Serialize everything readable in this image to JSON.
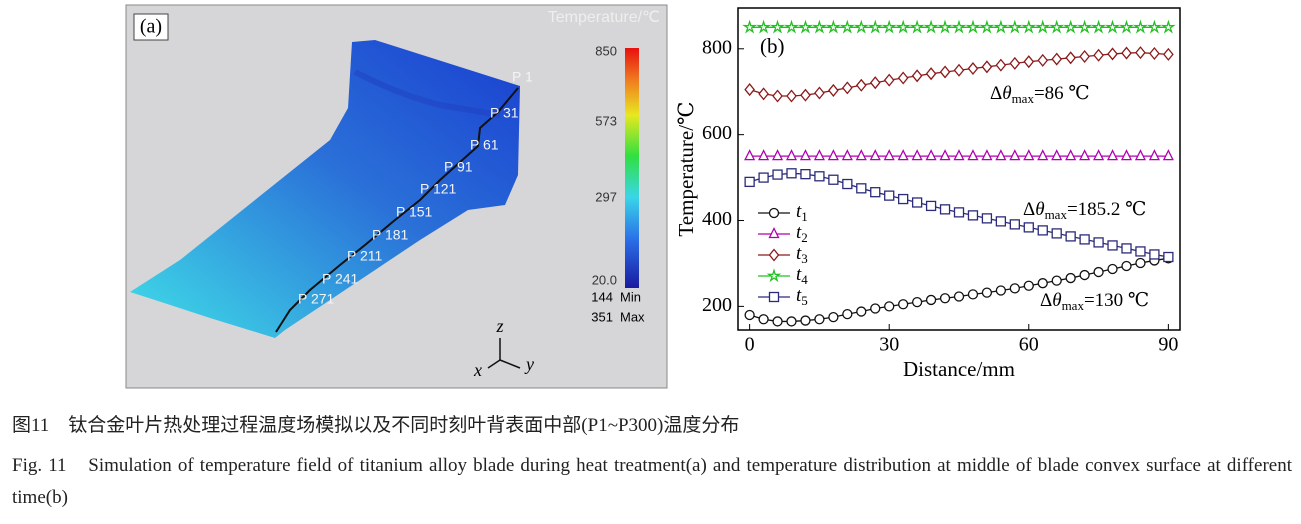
{
  "panel_a": {
    "label": "(a)",
    "colorbar_title": "Temperature/℃",
    "colorbar_ticks": [
      "850",
      "573",
      "297",
      "20.0"
    ],
    "min_label": "144",
    "min_text": "Min",
    "max_label": "351",
    "max_text": "Max",
    "points": [
      "P 1",
      "P 31",
      "P 61",
      "P 91",
      "P 121",
      "P 151",
      "P 181",
      "P 211",
      "P 241",
      "P 271"
    ],
    "axes": [
      "z",
      "x",
      "y"
    ]
  },
  "chart_data": {
    "type": "line",
    "panel_label": "(b)",
    "x_label": "Distance/mm",
    "y_label": "Temperature/℃",
    "x": [
      0,
      3,
      6,
      9,
      12,
      15,
      18,
      21,
      24,
      27,
      30,
      33,
      36,
      39,
      42,
      45,
      48,
      51,
      54,
      57,
      60,
      63,
      66,
      69,
      72,
      75,
      78,
      81,
      84,
      87,
      90
    ],
    "xlim": [
      -2.5,
      92.5
    ],
    "xticks": [
      0,
      30,
      60,
      90
    ],
    "ylim": [
      145,
      895
    ],
    "yticks": [
      200,
      400,
      600,
      800
    ],
    "legend": "left",
    "series": [
      {
        "name": "t1",
        "color": "#111111",
        "marker": "circle",
        "values": [
          180,
          170,
          165,
          165,
          167,
          170,
          175,
          182,
          188,
          195,
          200,
          205,
          210,
          215,
          219,
          223,
          228,
          232,
          237,
          242,
          248,
          254,
          260,
          266,
          273,
          280,
          287,
          294,
          301,
          307,
          312
        ]
      },
      {
        "name": "t2",
        "color": "#b000b0",
        "marker": "triangle",
        "values": [
          550,
          550,
          550,
          550,
          550,
          550,
          550,
          550,
          550,
          550,
          550,
          550,
          550,
          550,
          550,
          550,
          550,
          550,
          550,
          550,
          550,
          550,
          550,
          550,
          550,
          550,
          550,
          550,
          550,
          550,
          550
        ]
      },
      {
        "name": "t3",
        "color": "#8b1a1a",
        "marker": "diamond",
        "values": [
          705,
          695,
          690,
          690,
          692,
          697,
          703,
          709,
          715,
          721,
          727,
          732,
          737,
          742,
          746,
          750,
          754,
          758,
          762,
          766,
          770,
          773,
          776,
          779,
          782,
          785,
          788,
          790,
          791,
          789,
          787
        ]
      },
      {
        "name": "t4",
        "color": "#22c022",
        "marker": "star",
        "values": [
          850,
          850,
          850,
          850,
          850,
          850,
          850,
          850,
          850,
          850,
          850,
          850,
          850,
          850,
          850,
          850,
          850,
          850,
          850,
          850,
          850,
          850,
          850,
          850,
          850,
          850,
          850,
          850,
          850,
          850,
          850
        ]
      },
      {
        "name": "t5",
        "color": "#2b2b7a",
        "marker": "square",
        "values": [
          490,
          500,
          507,
          510,
          508,
          503,
          495,
          485,
          475,
          466,
          458,
          450,
          442,
          434,
          426,
          419,
          412,
          405,
          398,
          391,
          384,
          377,
          370,
          363,
          356,
          349,
          342,
          335,
          328,
          321,
          315
        ]
      }
    ],
    "annotations": [
      "Δθmax=86 ℃",
      "Δθmax=185.2 ℃",
      "Δθmax=130 ℃"
    ]
  },
  "caption": {
    "zh": "图11　钛合金叶片热处理过程温度场模拟以及不同时刻叶背表面中部(P1~P300)温度分布",
    "en": "Fig. 11　Simulation of temperature field of titanium alloy blade during heat treatment(a) and temperature distribution at middle of blade convex surface at different time(b)"
  }
}
